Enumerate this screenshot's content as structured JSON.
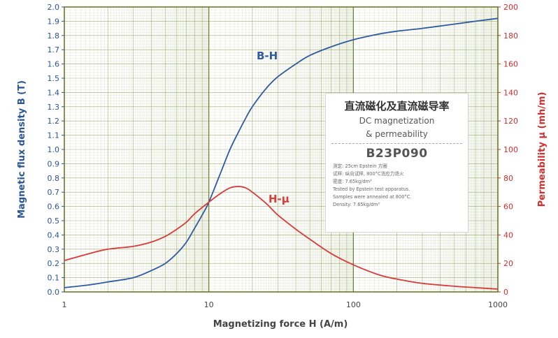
{
  "chart_data": {
    "type": "line",
    "title": "",
    "xlabel": "Magnetizing force H (A/m)",
    "ylabel": "Magnetic flux density B (T)",
    "y2label": "Permeability μ (mh/m)",
    "xscale": "log",
    "xlim": [
      1,
      1000
    ],
    "ylim": [
      0,
      2.0
    ],
    "y2lim": [
      0,
      200
    ],
    "grid": true,
    "x_ticks": [
      "1",
      "10",
      "100",
      "1000"
    ],
    "y_ticks": [
      "0.0",
      "0.1",
      "0.2",
      "0.3",
      "0.4",
      "0.5",
      "0.6",
      "0.7",
      "0.8",
      "0.9",
      "1.0",
      "1.1",
      "1.2",
      "1.3",
      "1.4",
      "1.5",
      "1.6",
      "1.7",
      "1.8",
      "1.9",
      "2.0"
    ],
    "y2_ticks": [
      "0",
      "20",
      "40",
      "60",
      "80",
      "100",
      "120",
      "140",
      "160",
      "180",
      "200"
    ],
    "series": [
      {
        "name": "B-H",
        "axis": "left",
        "color": "#2d5aa0",
        "x": [
          1,
          1.5,
          2,
          3,
          4,
          5,
          6,
          7,
          8,
          9,
          10,
          12,
          14,
          16,
          18,
          20,
          25,
          30,
          40,
          50,
          70,
          100,
          150,
          200,
          300,
          500,
          700,
          1000
        ],
        "y": [
          0.03,
          0.05,
          0.07,
          0.1,
          0.15,
          0.2,
          0.27,
          0.35,
          0.45,
          0.54,
          0.63,
          0.83,
          1.0,
          1.12,
          1.22,
          1.3,
          1.43,
          1.51,
          1.6,
          1.66,
          1.72,
          1.77,
          1.81,
          1.83,
          1.85,
          1.88,
          1.9,
          1.92
        ]
      },
      {
        "name": "H-μ",
        "axis": "right",
        "color": "#d93a3a",
        "x": [
          1,
          1.5,
          2,
          3,
          4,
          5,
          6,
          7,
          8,
          10,
          12,
          14,
          16,
          18,
          20,
          25,
          30,
          40,
          50,
          70,
          100,
          150,
          200,
          300,
          500,
          700,
          1000
        ],
        "y": [
          22,
          27,
          30,
          32,
          35,
          39,
          44,
          49,
          55,
          63,
          69,
          73,
          74,
          73,
          70,
          62,
          54,
          44,
          37,
          27,
          19,
          12,
          9,
          6,
          4,
          3,
          2
        ]
      }
    ],
    "annotations": [
      "B-H",
      "H-μ"
    ]
  },
  "colors": {
    "grid": "#7a8a33",
    "frame": "#6b7a2a",
    "left_axis": "#2a5596",
    "right_axis": "#d22e2e"
  },
  "infobox": {
    "title_cn": "直流磁化及直流磁导率",
    "title_en_1": "DC magnetization",
    "title_en_2": "& permeability",
    "grade": "B23P090",
    "notes": [
      "测定: 25cm Epstein 方圈",
      "试样: 纵向试样, 800°C消应力退火",
      "密度: 7.65kg/dm³",
      "Tested by Epstein test apparatus.",
      "Samples were annealed at 800°C.",
      "Density: 7.65kg/dm³"
    ]
  }
}
